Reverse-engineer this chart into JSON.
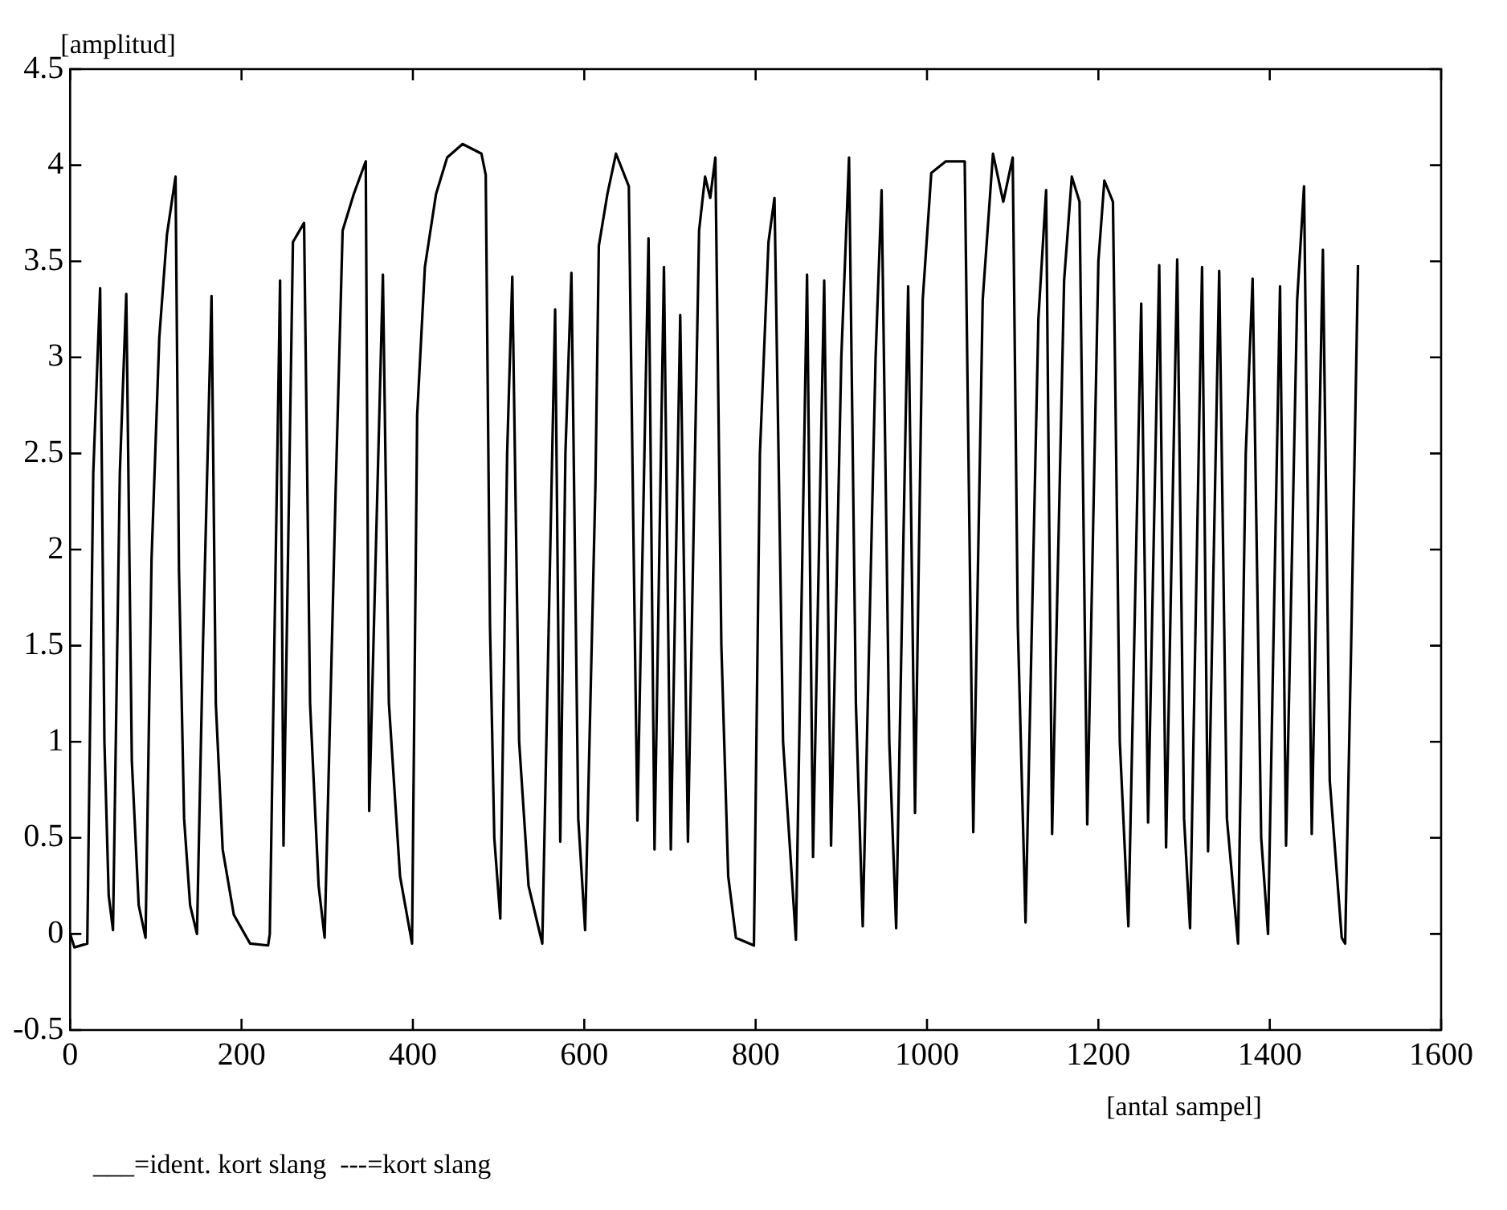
{
  "chart_data": {
    "type": "line",
    "xlabel": "[antal sampel]",
    "ylabel": "[amplitud]",
    "annotations": [
      "___=ident. kort slang  ---=kort slang"
    ],
    "xlim": [
      0,
      1600
    ],
    "xticks": [
      0,
      200,
      400,
      600,
      800,
      1000,
      1200,
      1400,
      1600
    ],
    "ylim": [
      -0.5,
      4.5
    ],
    "yticks": [
      -0.5,
      0,
      0.5,
      1,
      1.5,
      2,
      2.5,
      3,
      3.5,
      4,
      4.5
    ],
    "grid": false,
    "legend": false,
    "series": [
      {
        "color": "#000000",
        "x": [
          0,
          5,
          20,
          27,
          35,
          40,
          45,
          50,
          58,
          65.5,
          72,
          80,
          88,
          95,
          104,
          113,
          123,
          127,
          133,
          140,
          148,
          155,
          165,
          170,
          178,
          191,
          210,
          231,
          233,
          245,
          249,
          260,
          273,
          280,
          290,
          297,
          310,
          318,
          331,
          345,
          349,
          365,
          372,
          385,
          399,
          405,
          414,
          427,
          440,
          458,
          480,
          485,
          490,
          495,
          502,
          510,
          516,
          524,
          535,
          551,
          566,
          572,
          578,
          585,
          593,
          601,
          613,
          617,
          627,
          637,
          652,
          657,
          662,
          675,
          682,
          693,
          701,
          712,
          721,
          734,
          741,
          747,
          753,
          760,
          768,
          777,
          798,
          805,
          815,
          822,
          832,
          847,
          860,
          867,
          880,
          888,
          900,
          909,
          917,
          925,
          940,
          947,
          956,
          964,
          978,
          986,
          995,
          1005,
          1022,
          1044,
          1054,
          1065,
          1077,
          1089,
          1100,
          1106,
          1115,
          1130,
          1139,
          1146,
          1160,
          1169,
          1178,
          1187,
          1200,
          1207,
          1217,
          1225,
          1235,
          1250,
          1258,
          1271,
          1279,
          1292,
          1300,
          1307,
          1321,
          1328,
          1341,
          1350,
          1363,
          1372,
          1380,
          1390,
          1398,
          1412,
          1419,
          1432,
          1440,
          1449,
          1462,
          1470,
          1484,
          1488,
          1495,
          1503
        ],
        "values": [
          0,
          -0.07,
          -0.05,
          2.4,
          3.36,
          1.0,
          0.2,
          0.02,
          2.4,
          3.33,
          0.9,
          0.15,
          -0.02,
          1.95,
          3.1,
          3.64,
          3.94,
          1.9,
          0.6,
          0.15,
          0.0,
          1.5,
          3.32,
          1.2,
          0.44,
          0.1,
          -0.05,
          -0.06,
          0.0,
          3.4,
          0.46,
          3.6,
          3.7,
          1.2,
          0.25,
          -0.02,
          2.33,
          3.66,
          3.85,
          4.02,
          0.64,
          3.43,
          1.2,
          0.3,
          -0.05,
          2.7,
          3.47,
          3.85,
          4.04,
          4.11,
          4.06,
          3.95,
          1.6,
          0.5,
          0.08,
          2.5,
          3.42,
          1.0,
          0.25,
          -0.05,
          3.25,
          0.48,
          2.5,
          3.44,
          0.6,
          0.02,
          2.33,
          3.58,
          3.85,
          4.06,
          3.89,
          2.2,
          0.59,
          3.62,
          0.44,
          3.47,
          0.44,
          3.22,
          0.48,
          3.66,
          3.94,
          3.83,
          4.04,
          1.5,
          0.3,
          -0.02,
          -0.06,
          2.5,
          3.6,
          3.83,
          1.0,
          -0.03,
          3.43,
          0.4,
          3.4,
          0.46,
          3.0,
          4.04,
          1.2,
          0.04,
          3.0,
          3.87,
          1.0,
          0.03,
          3.37,
          0.63,
          3.3,
          3.96,
          4.02,
          4.02,
          0.53,
          3.3,
          4.06,
          3.81,
          4.04,
          1.6,
          0.06,
          3.2,
          3.87,
          0.52,
          3.4,
          3.94,
          3.81,
          0.57,
          3.5,
          3.92,
          3.81,
          1.0,
          0.04,
          3.28,
          0.58,
          3.48,
          0.45,
          3.51,
          0.6,
          0.03,
          3.47,
          0.43,
          3.45,
          0.6,
          -0.05,
          2.5,
          3.41,
          0.5,
          0.0,
          3.37,
          0.46,
          3.3,
          3.89,
          0.52,
          3.56,
          0.8,
          -0.02,
          -0.05,
          1.5,
          3.48
        ]
      }
    ]
  }
}
